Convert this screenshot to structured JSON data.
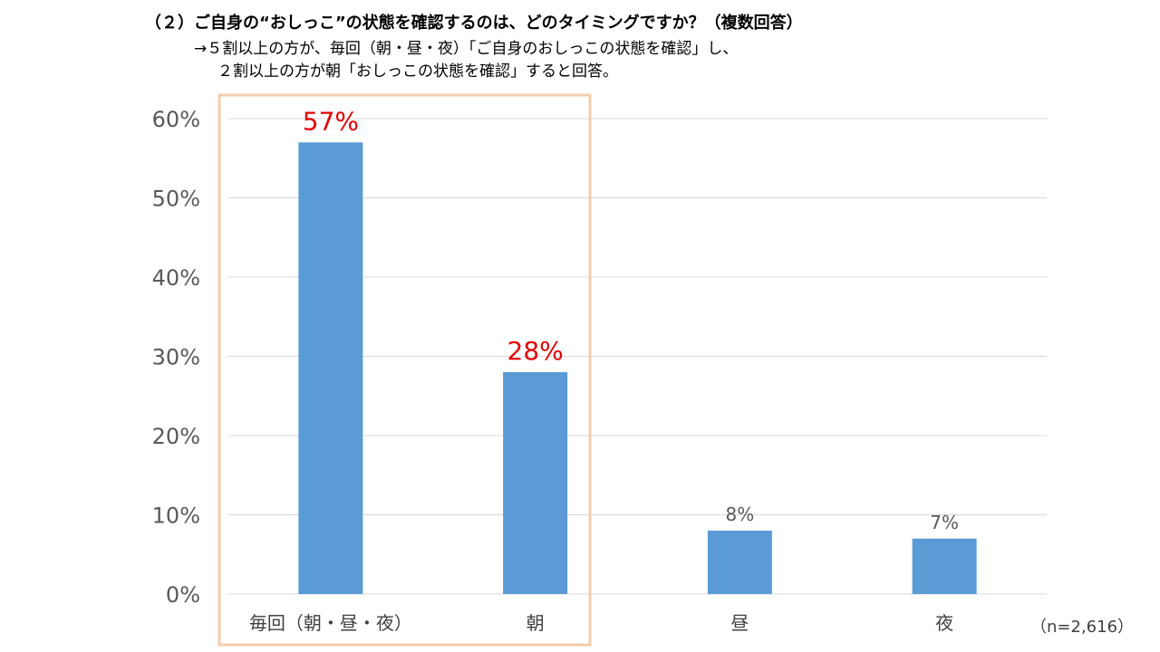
{
  "header": {
    "title": "（２）ご自身の“おしっこ”の状態を確認するのは、どのタイミングですか？（複数回答）",
    "subtitle_line1": "→５割以上の方が、毎回（朝・昼・夜）「ご自身のおしっこの状態を確認」し、",
    "subtitle_line2": "２割以上の方が朝「おしっこの状態を確認」すると回答。"
  },
  "sample_note": "（n=2,616）",
  "colors": {
    "bar": "#5B9BD5",
    "highlight_label": "#E00000",
    "normal_label": "#595959",
    "axis_text": "#595959",
    "grid": "#D9D9D9",
    "highlight_box": "#F4CCAC"
  },
  "chart_data": {
    "type": "bar",
    "categories": [
      "毎回（朝・昼・夜）",
      "朝",
      "昼",
      "夜"
    ],
    "values": [
      57,
      28,
      8,
      7
    ],
    "value_labels": [
      "57%",
      "28%",
      "8%",
      "7%"
    ],
    "highlighted": [
      true,
      true,
      false,
      false
    ],
    "title": "",
    "xlabel": "",
    "ylabel": "",
    "ylim": [
      0,
      60
    ],
    "yticks": [
      0,
      10,
      20,
      30,
      40,
      50,
      60
    ],
    "ytick_labels": [
      "0%",
      "10%",
      "20%",
      "30%",
      "40%",
      "50%",
      "60%"
    ],
    "grid": true,
    "highlight_box_around": [
      "毎回（朝・昼・夜）",
      "朝"
    ]
  }
}
